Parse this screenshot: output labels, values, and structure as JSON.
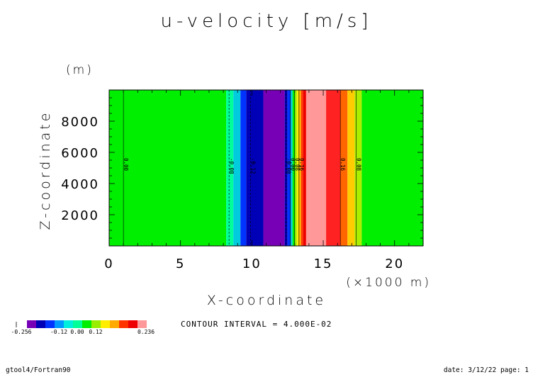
{
  "chart_data": {
    "type": "heatmap",
    "title": "u-velocity [m/s]",
    "xlabel": "X-coordinate",
    "x_unit_label": "(×1000 m)",
    "ylabel": "Z-coordinate",
    "y_unit_label": "(m)",
    "xlim": [
      0,
      22
    ],
    "ylim": [
      0,
      10000
    ],
    "x_ticks": [
      "0",
      "5",
      "10",
      "15",
      "20"
    ],
    "y_ticks": [
      "2000",
      "4000",
      "6000",
      "8000"
    ],
    "contour_interval_text": "CONTOUR INTERVAL = 4.000E-02",
    "colorbar": {
      "colors": [
        "#7700b7",
        "#0000b7",
        "#0033ff",
        "#0099ff",
        "#00eedd",
        "#00ff99",
        "#00ee00",
        "#99ee00",
        "#ffee00",
        "#ffaa00",
        "#ff3300",
        "#ee0000",
        "#ff9999"
      ],
      "tick_labels": [
        "-0.256",
        "-0.12",
        "0.00",
        "0.12",
        "0.236"
      ]
    },
    "bands": [
      {
        "x0": 0.0,
        "x1": 8.2,
        "color": "#00ee00"
      },
      {
        "x0": 8.2,
        "x1": 8.7,
        "color": "#00ff99"
      },
      {
        "x0": 8.7,
        "x1": 9.2,
        "color": "#00ccdd"
      },
      {
        "x0": 9.2,
        "x1": 9.6,
        "color": "#0033ff"
      },
      {
        "x0": 9.6,
        "x1": 10.8,
        "color": "#0000b7"
      },
      {
        "x0": 10.8,
        "x1": 12.3,
        "color": "#7700b7"
      },
      {
        "x0": 12.3,
        "x1": 12.5,
        "color": "#0000b7"
      },
      {
        "x0": 12.5,
        "x1": 12.7,
        "color": "#0033ff"
      },
      {
        "x0": 12.7,
        "x1": 12.85,
        "color": "#00ccdd"
      },
      {
        "x0": 12.85,
        "x1": 13.0,
        "color": "#00ee00"
      },
      {
        "x0": 13.0,
        "x1": 13.15,
        "color": "#99ee00"
      },
      {
        "x0": 13.15,
        "x1": 13.3,
        "color": "#ffee00"
      },
      {
        "x0": 13.3,
        "x1": 13.45,
        "color": "#ffaa00"
      },
      {
        "x0": 13.45,
        "x1": 13.6,
        "color": "#ff3300"
      },
      {
        "x0": 13.6,
        "x1": 13.8,
        "color": "#ee0000"
      },
      {
        "x0": 13.8,
        "x1": 15.2,
        "color": "#ff9999"
      },
      {
        "x0": 15.2,
        "x1": 16.2,
        "color": "#ff2222"
      },
      {
        "x0": 16.2,
        "x1": 16.7,
        "color": "#ff6600"
      },
      {
        "x0": 16.7,
        "x1": 17.2,
        "color": "#ffcc00"
      },
      {
        "x0": 17.2,
        "x1": 17.7,
        "color": "#aaee00"
      },
      {
        "x0": 17.7,
        "x1": 22.0,
        "color": "#00ee00"
      }
    ],
    "contours": [
      {
        "x": 1.0,
        "label": "0.00",
        "dashed": false
      },
      {
        "x": 8.4,
        "label": "-0.08",
        "dashed": true
      },
      {
        "x": 9.9,
        "label": "-0.12",
        "dashed": true
      },
      {
        "x": 12.4,
        "label": "-0.08",
        "dashed": true
      },
      {
        "x": 12.7,
        "label": "0.00",
        "dashed": false
      },
      {
        "x": 13.0,
        "label": "0.08",
        "dashed": false
      },
      {
        "x": 13.3,
        "label": "0.16",
        "dashed": false
      },
      {
        "x": 16.2,
        "label": "0.16",
        "dashed": false
      },
      {
        "x": 17.3,
        "label": "0.08",
        "dashed": false
      }
    ]
  },
  "footer": {
    "left": "gtool4/Fortran90",
    "right": "date: 3/12/22 page: 1"
  }
}
